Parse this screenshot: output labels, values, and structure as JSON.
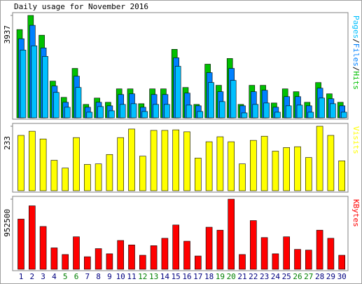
{
  "chart_data": [
    {
      "type": "bar",
      "title": "Daily usage for November 2016",
      "categories": [
        "1",
        "2",
        "3",
        "4",
        "5",
        "6",
        "7",
        "8",
        "9",
        "10",
        "11",
        "12",
        "13",
        "14",
        "15",
        "16",
        "17",
        "18",
        "19",
        "20",
        "21",
        "22",
        "23",
        "24",
        "25",
        "26",
        "27",
        "28",
        "29",
        "30"
      ],
      "category_colors": [
        "#000080",
        "#000080",
        "#000080",
        "#000080",
        "#008000",
        "#008000",
        "#000080",
        "#000080",
        "#000080",
        "#000080",
        "#000080",
        "#008000",
        "#008000",
        "#000080",
        "#000080",
        "#000080",
        "#000080",
        "#000080",
        "#008000",
        "#008000",
        "#000080",
        "#000080",
        "#000080",
        "#000080",
        "#000080",
        "#008000",
        "#008000",
        "#000080",
        "#000080",
        "#000080"
      ],
      "legend_separator": "/",
      "series": [
        {
          "name": "Pages",
          "color": "#00c0ff",
          "values": [
            2606,
            2769,
            2362,
            977,
            407,
            1167,
            217,
            434,
            271,
            516,
            543,
            244,
            516,
            516,
            1982,
            489,
            244,
            1357,
            624,
            1439,
            190,
            516,
            570,
            217,
            462,
            489,
            217,
            760,
            543,
            217
          ]
        },
        {
          "name": "Files",
          "color": "#0080ff",
          "values": [
            3041,
            3557,
            2688,
            1222,
            597,
            1602,
            407,
            597,
            462,
            896,
            923,
            407,
            896,
            896,
            2308,
            950,
            462,
            1738,
            1005,
            1900,
            462,
            1005,
            1059,
            407,
            815,
            815,
            462,
            1140,
            733,
            462
          ]
        },
        {
          "name": "Hits",
          "color": "#00c000",
          "values": [
            3394,
            3937,
            3177,
            1412,
            787,
            1900,
            516,
            760,
            597,
            1113,
            1113,
            543,
            1113,
            1113,
            2634,
            1167,
            516,
            2063,
            1249,
            2281,
            516,
            1249,
            1249,
            570,
            1113,
            1005,
            597,
            1357,
            923,
            597
          ]
        }
      ],
      "ylim": [
        0,
        3937
      ],
      "yticks": [
        3937
      ]
    },
    {
      "type": "bar",
      "series": [
        {
          "name": "Visits",
          "color": "#ffff00",
          "values": [
            200,
            215,
            187,
            110,
            82,
            192,
            95,
            97,
            131,
            192,
            223,
            125,
            218,
            218,
            220,
            213,
            118,
            177,
            195,
            177,
            97,
            182,
            197,
            143,
            156,
            159,
            120,
            233,
            200,
            108
          ]
        }
      ],
      "ylim": [
        0,
        233
      ],
      "yticks": [
        233
      ]
    },
    {
      "type": "bar",
      "series": [
        {
          "name": "KBytes",
          "color": "#ff0000",
          "values": [
            681800,
            862000,
            581500,
            290800,
            200500,
            441200,
            170500,
            280700,
            210600,
            391000,
            330900,
            190500,
            320800,
            421100,
            601600,
            381000,
            180500,
            571500,
            531400,
            952500,
            200500,
            661700,
            431100,
            210600,
            441200,
            270700,
            260700,
            531400,
            421100,
            190500
          ]
        }
      ],
      "ylim": [
        0,
        952500
      ],
      "yticks": [
        952500
      ]
    }
  ]
}
